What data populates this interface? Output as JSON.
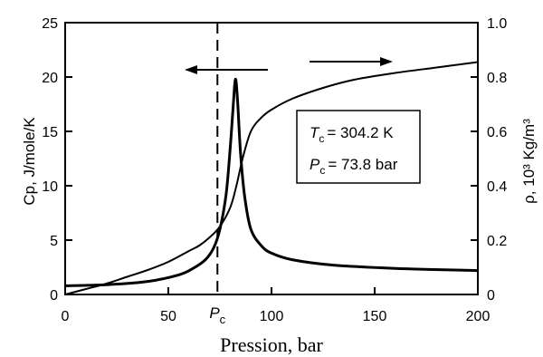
{
  "chart_data": {
    "type": "line",
    "xlabel": "Pression, bar",
    "ylabel_left": "Cp, J/mole/K",
    "ylabel_right": "ρ, 10³ Kg/m³",
    "xlim": [
      0,
      200
    ],
    "ylim_left": [
      0,
      25
    ],
    "ylim_right": [
      0,
      1.0
    ],
    "x_ticks": [
      "0",
      "50",
      "100",
      "150",
      "200"
    ],
    "y_left_ticks": [
      "0",
      "5",
      "10",
      "15",
      "20",
      "25"
    ],
    "y_right_ticks": [
      "0",
      "0.2",
      "0.4",
      "0.6",
      "0.8",
      "1.0"
    ],
    "critical_pressure_marker": {
      "label_base": "P",
      "label_sub": "c",
      "x": 73.8
    },
    "annotations": {
      "tc_base": "T",
      "tc_sub": "c",
      "tc_value": "= 304.2 K",
      "pc_base": "P",
      "pc_sub": "c",
      "pc_value": "= 73.8 bar"
    },
    "arrows": [
      {
        "points_to": "left",
        "axis": "left"
      },
      {
        "points_to": "right",
        "axis": "right"
      }
    ],
    "series": [
      {
        "axis": "left",
        "x": [
          0,
          20,
          40,
          55,
          62,
          68,
          72,
          75,
          78,
          80,
          81.5,
          82.5,
          83.5,
          85,
          87,
          90,
          95,
          100,
          110,
          130,
          160,
          200
        ],
        "values": [
          0.8,
          0.9,
          1.2,
          1.8,
          2.4,
          3.2,
          4.3,
          6.0,
          9.2,
          13.5,
          17.5,
          19.8,
          18.0,
          13.0,
          9.0,
          6.0,
          4.5,
          3.8,
          3.2,
          2.7,
          2.4,
          2.2
        ]
      },
      {
        "axis": "right",
        "x": [
          0,
          10,
          20,
          30,
          40,
          50,
          60,
          65,
          70,
          75,
          80,
          83,
          86,
          90,
          95,
          100,
          110,
          125,
          140,
          160,
          180,
          200
        ],
        "values": [
          0.0,
          0.02,
          0.04,
          0.065,
          0.09,
          0.12,
          0.16,
          0.18,
          0.21,
          0.25,
          0.32,
          0.4,
          0.5,
          0.6,
          0.65,
          0.68,
          0.72,
          0.76,
          0.79,
          0.815,
          0.835,
          0.855
        ]
      }
    ]
  }
}
